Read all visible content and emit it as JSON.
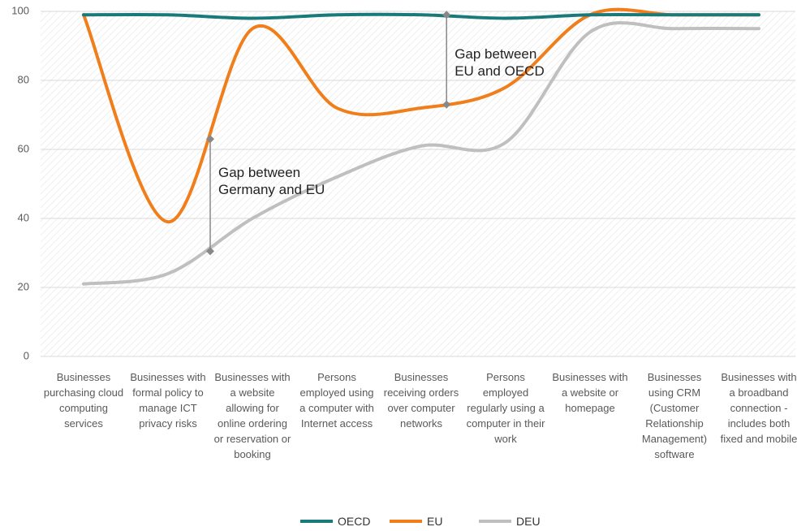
{
  "chart_data": {
    "type": "line",
    "categories": [
      "Businesses purchasing cloud computing services",
      "Businesses with formal policy to manage ICT privacy risks",
      "Businesses with a website allowing for online ordering or reservation or booking",
      "Persons employed using a computer with Internet access",
      "Businesses receiving orders over computer networks",
      "Persons employed regularly using a computer in their work",
      "Businesses with a website or homepage",
      "Businesses using CRM (Customer Relationship Management) software",
      "Businesses with a broadband connection - includes both fixed and mobile"
    ],
    "series": [
      {
        "name": "OECD",
        "color": "#1a7a7a",
        "values": [
          99,
          99,
          98,
          99,
          99,
          98,
          99,
          99,
          99
        ]
      },
      {
        "name": "EU",
        "color": "#f07f1b",
        "values": [
          99,
          39,
          95,
          72,
          72,
          78,
          99,
          99,
          99
        ]
      },
      {
        "name": "DEU",
        "color": "#bfbfbf",
        "values": [
          21,
          24,
          40,
          52,
          61,
          62,
          94,
          95,
          95
        ]
      }
    ],
    "annotations": [
      {
        "text": "Gap between Germany and EU",
        "x": 1.5,
        "values": [
          63,
          30.5
        ]
      },
      {
        "text": "Gap between EU and OECD",
        "x": 4.3,
        "values": [
          99,
          73
        ]
      }
    ],
    "ylim": [
      0,
      100
    ],
    "yticks": [
      0,
      20,
      40,
      60,
      80,
      100
    ],
    "grid": true,
    "legend": "bottom"
  }
}
